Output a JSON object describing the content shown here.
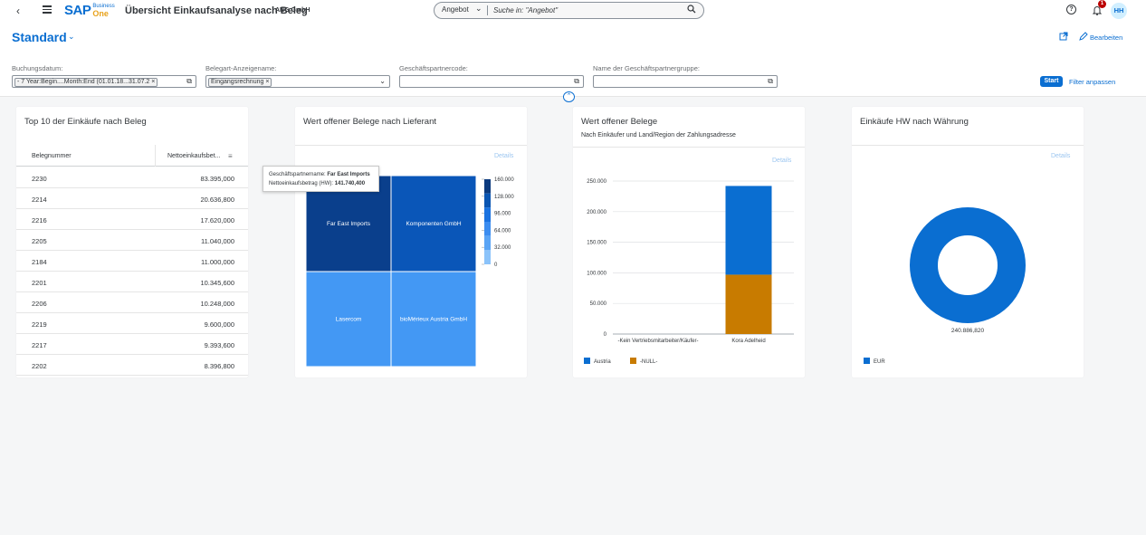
{
  "shell": {
    "app_title": "Übersicht Einkaufsanalyse nach Beleg",
    "company": "ANG GmbH",
    "logo_sap": "SAP",
    "logo_business": "Business",
    "logo_one": "One",
    "search_scope": "Angebot",
    "search_placeholder": "Suche in: \"Angebot\"",
    "notification_count": "1",
    "avatar_initials": "HH",
    "icons": [
      "back-icon",
      "menu-icon",
      "search-icon",
      "help-icon",
      "bell-icon"
    ]
  },
  "page": {
    "variant": "Standard",
    "edit_label": "Bearbeiten"
  },
  "filters": {
    "posting_date_label": "Buchungsdatum:",
    "posting_date_token": "- 7 Year:Begin....Month:End (01.01.18...31.07.2",
    "doc_type_label": "Belegart-Anzeigename:",
    "doc_type_token": "Eingangsrechnung",
    "bp_code_label": "Geschäftspartnercode:",
    "bp_group_label": "Name der Geschäftspartnergruppe:",
    "start_label": "Start",
    "adapt_label": "Filter anpassen"
  },
  "card1": {
    "title": "Top 10 der Einkäufe nach Beleg",
    "col1": "Belegnummer",
    "col2": "Nettoeinkaufsbet...",
    "rows": [
      {
        "doc": "2230",
        "amount": "83.395,000"
      },
      {
        "doc": "2214",
        "amount": "20.636,800"
      },
      {
        "doc": "2216",
        "amount": "17.620,000"
      },
      {
        "doc": "2205",
        "amount": "11.040,000"
      },
      {
        "doc": "2184",
        "amount": "11.000,000"
      },
      {
        "doc": "2201",
        "amount": "10.345,600"
      },
      {
        "doc": "2206",
        "amount": "10.248,000"
      },
      {
        "doc": "2219",
        "amount": "9.600,000"
      },
      {
        "doc": "2217",
        "amount": "9.393,600"
      },
      {
        "doc": "2202",
        "amount": "8.396,800"
      }
    ]
  },
  "card2": {
    "title": "Wert offener Belege nach Lieferant",
    "details": "Details",
    "tooltip": {
      "name_label": "Geschäftspartnername:",
      "name_value": "Far East Imports",
      "amount_label": "Nettoeinkaufsbetrag (HW):",
      "amount_value": "141.740,400"
    }
  },
  "card3": {
    "title": "Wert offener Belege",
    "subtitle": "Nach Einkäufer und Land/Region der Zahlungsadresse",
    "details": "Details"
  },
  "card4": {
    "title": "Einkäufe HW nach Währung",
    "details": "Details"
  },
  "chart_data": [
    {
      "type": "heatmap",
      "title": "Wert offener Belege nach Lieferant",
      "categories": [
        "Far East Imports",
        "Komponenten GmbH",
        "Lasercom",
        "bioMérieux Austria GmbH"
      ],
      "values": [
        141740.4,
        125000,
        50000,
        30000
      ],
      "colors": [
        "#0a3f8c",
        "#0a56b8",
        "#4398f4",
        "#4398f4"
      ],
      "scale_ticks": [
        "160.000",
        "128.000",
        "96.000",
        "64.000",
        "32.000",
        "0"
      ],
      "scale_colors": [
        "#0b3a7e",
        "#0a55b2",
        "#1a72e0",
        "#3b8cf0",
        "#5aa4f5",
        "#8bc3fa"
      ]
    },
    {
      "type": "bar",
      "title": "Wert offener Belege",
      "subtitle": "Nach Einkäufer und Land/Region der Zahlungsadresse",
      "categories": [
        "-Kein Vertriebsmitarbeiter/Käufer-",
        "Kora Adelheid"
      ],
      "series": [
        {
          "name": "Austria",
          "values": [
            0,
            145000
          ],
          "color": "#0a6ed1"
        },
        {
          "name": "-NULL-",
          "values": [
            0,
            97000
          ],
          "color": "#c87b00"
        }
      ],
      "stacked": true,
      "ylim": [
        0,
        250000
      ],
      "yticks": [
        0,
        50000,
        100000,
        150000,
        200000,
        250000
      ],
      "ytick_labels": [
        "0",
        "50.000",
        "100.000",
        "150.000",
        "200.000",
        "250.000"
      ],
      "legend": "bottom-left"
    },
    {
      "type": "pie",
      "title": "Einkäufe HW nach Währung",
      "donut": true,
      "categories": [
        "EUR"
      ],
      "values": [
        240886.82
      ],
      "value_labels": [
        "240.886,820"
      ],
      "colors": [
        "#0a6ed1"
      ],
      "legend": "bottom-left"
    }
  ]
}
